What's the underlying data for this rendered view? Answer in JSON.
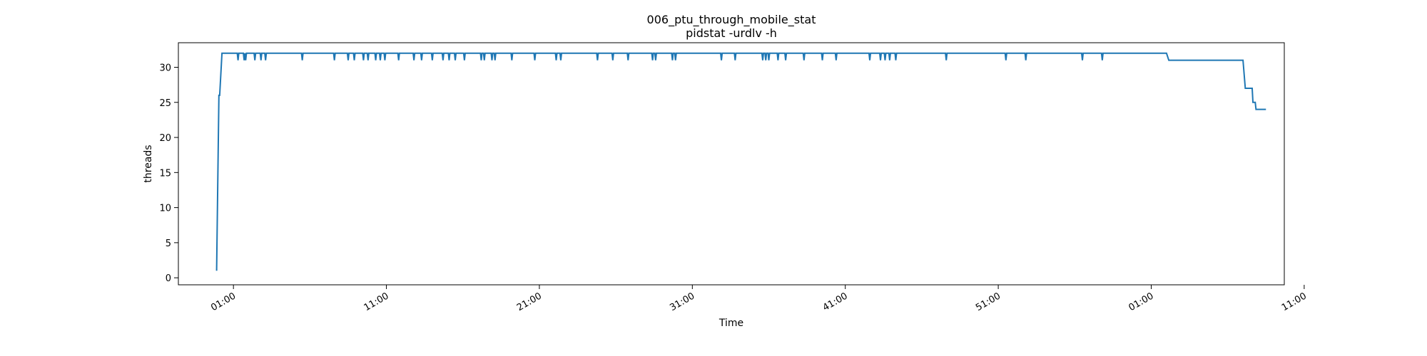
{
  "chart_data": {
    "type": "line",
    "title": "006_ptu_through_mobile_stat",
    "subtitle": "pidstat -urdlv -h",
    "xlabel": "Time",
    "ylabel": "threads",
    "ylim": [
      -1,
      33.5
    ],
    "yticks": [
      0,
      5,
      10,
      15,
      20,
      25,
      30
    ],
    "xlim": [
      -3.6,
      68.7
    ],
    "xticks": [
      {
        "value": 0,
        "label": "01:00"
      },
      {
        "value": 10,
        "label": "11:00"
      },
      {
        "value": 20,
        "label": "21:00"
      },
      {
        "value": 30,
        "label": "31:00"
      },
      {
        "value": 40,
        "label": "41:00"
      },
      {
        "value": 50,
        "label": "51:00"
      },
      {
        "value": 60,
        "label": "01:00"
      },
      {
        "value": 70,
        "label": "11:00"
      }
    ],
    "x_unit": "minutes relative to 01:00",
    "dip_minutes": [
      0.8,
      0.3,
      0.7,
      1.4,
      1.8,
      2.1,
      4.5,
      6.6,
      7.5,
      7.9,
      8.5,
      8.8,
      9.3,
      9.6,
      9.9,
      10.8,
      11.8,
      12.3,
      13.0,
      13.7,
      14.1,
      14.5,
      15.1,
      16.2,
      16.4,
      16.9,
      17.1,
      18.2,
      19.7,
      21.1,
      21.4,
      23.8,
      24.8,
      25.8,
      27.4,
      27.6,
      28.7,
      28.9,
      31.9,
      32.8,
      34.6,
      34.8,
      35.0,
      35.6,
      36.1,
      37.3,
      38.5,
      39.4,
      41.6,
      42.3,
      42.6,
      42.9,
      43.3,
      46.6,
      50.5,
      51.8,
      55.5,
      56.8
    ],
    "series": [
      {
        "name": "",
        "color": "#1f77b4",
        "points": [
          [
            -1.1,
            1
          ],
          [
            -0.95,
            26
          ],
          [
            -0.9,
            26
          ],
          [
            -0.75,
            32
          ],
          [
            61.0,
            32
          ],
          [
            61.15,
            31
          ],
          [
            66.0,
            31
          ],
          [
            66.15,
            27
          ],
          [
            66.6,
            27
          ],
          [
            66.65,
            25
          ],
          [
            66.8,
            25
          ],
          [
            66.85,
            24
          ],
          [
            67.5,
            24
          ]
        ]
      }
    ]
  }
}
